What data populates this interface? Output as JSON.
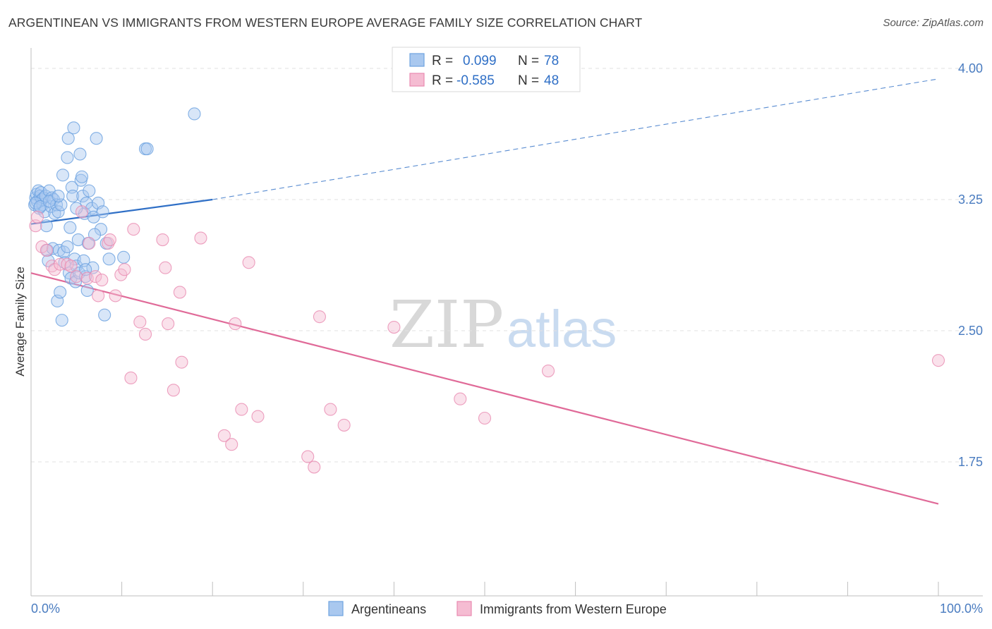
{
  "title": "ARGENTINEAN VS IMMIGRANTS FROM WESTERN EUROPE AVERAGE FAMILY SIZE CORRELATION CHART",
  "source": "Source: ZipAtlas.com",
  "watermark": {
    "zip": "ZIP",
    "atlas": "atlas"
  },
  "colors": {
    "blue": "#6fa3e0",
    "blue_fill": "#a9c8ef",
    "blue_line": "#2f6fc6",
    "pink": "#e88ab0",
    "pink_fill": "#f5bcd2",
    "pink_line": "#e06a98",
    "grid": "#e2e2e2",
    "tick": "#4a7cc0"
  },
  "legend": {
    "r_label": "R =",
    "n_label": "N =",
    "rows": [
      {
        "r": "0.099",
        "n": "78"
      },
      {
        "r": "-0.585",
        "n": "48"
      }
    ]
  },
  "chart_data": {
    "type": "scatter",
    "title": "ARGENTINEAN VS IMMIGRANTS FROM WESTERN EUROPE AVERAGE FAMILY SIZE CORRELATION CHART",
    "xlabel": "",
    "ylabel": "Average Family Size",
    "xlim": [
      0,
      100
    ],
    "ylim": [
      1.0,
      4.1
    ],
    "x_tick_labels": {
      "left": "0.0%",
      "right": "100.0%"
    },
    "y_ticks": [
      1.75,
      2.5,
      3.25,
      4.0
    ],
    "y_tick_labels": [
      "1.75",
      "2.50",
      "3.25",
      "4.00"
    ],
    "grid": true,
    "legend_position": "bottom",
    "series": [
      {
        "name": "Argentineans",
        "r": 0.099,
        "n": 78,
        "trend": {
          "x0": 0,
          "y0": 3.11,
          "x1": 20,
          "y1": 3.25,
          "dashed_to_x": 100,
          "dashed_to_y": 3.94
        },
        "points": [
          [
            0.4,
            3.22
          ],
          [
            0.5,
            3.26
          ],
          [
            0.6,
            3.28
          ],
          [
            0.7,
            3.24
          ],
          [
            0.8,
            3.3
          ],
          [
            0.9,
            3.2
          ],
          [
            1.0,
            3.27
          ],
          [
            1.1,
            3.29
          ],
          [
            1.2,
            3.25
          ],
          [
            1.3,
            3.22
          ],
          [
            1.4,
            3.26
          ],
          [
            1.5,
            3.18
          ],
          [
            1.6,
            3.27
          ],
          [
            1.7,
            3.1
          ],
          [
            1.8,
            2.96
          ],
          [
            1.9,
            2.9
          ],
          [
            2.0,
            3.3
          ],
          [
            2.2,
            3.21
          ],
          [
            2.3,
            3.26
          ],
          [
            2.4,
            2.97
          ],
          [
            2.5,
            3.25
          ],
          [
            2.6,
            3.17
          ],
          [
            2.8,
            3.22
          ],
          [
            2.9,
            2.67
          ],
          [
            3.0,
            3.18
          ],
          [
            3.1,
            2.96
          ],
          [
            3.2,
            2.72
          ],
          [
            3.3,
            3.22
          ],
          [
            3.4,
            2.56
          ],
          [
            3.5,
            3.39
          ],
          [
            3.6,
            2.95
          ],
          [
            3.7,
            2.89
          ],
          [
            4.0,
            3.49
          ],
          [
            4.1,
            3.6
          ],
          [
            4.2,
            2.83
          ],
          [
            4.3,
            3.09
          ],
          [
            4.4,
            2.8
          ],
          [
            4.5,
            3.32
          ],
          [
            4.6,
            3.27
          ],
          [
            4.7,
            3.66
          ],
          [
            4.8,
            2.91
          ],
          [
            4.9,
            2.78
          ],
          [
            5.0,
            2.87
          ],
          [
            5.2,
            3.02
          ],
          [
            5.3,
            2.83
          ],
          [
            5.4,
            3.51
          ],
          [
            5.5,
            3.36
          ],
          [
            5.6,
            3.38
          ],
          [
            5.7,
            3.27
          ],
          [
            5.8,
            2.9
          ],
          [
            5.9,
            3.17
          ],
          [
            6.0,
            2.81
          ],
          [
            6.1,
            3.23
          ],
          [
            6.2,
            2.73
          ],
          [
            6.3,
            3.0
          ],
          [
            6.4,
            3.3
          ],
          [
            6.7,
            3.2
          ],
          [
            6.8,
            2.86
          ],
          [
            6.9,
            3.15
          ],
          [
            7.2,
            3.6
          ],
          [
            7.4,
            3.23
          ],
          [
            7.7,
            3.08
          ],
          [
            7.9,
            3.18
          ],
          [
            8.1,
            2.59
          ],
          [
            8.3,
            3.0
          ],
          [
            8.6,
            2.91
          ],
          [
            10.2,
            2.92
          ],
          [
            12.6,
            3.54
          ],
          [
            12.8,
            3.54
          ],
          [
            18.0,
            3.74
          ],
          [
            0.5,
            3.23
          ],
          [
            1.0,
            3.21
          ],
          [
            2.0,
            3.24
          ],
          [
            3.0,
            3.27
          ],
          [
            4.0,
            2.98
          ],
          [
            5.0,
            3.2
          ],
          [
            6.0,
            2.85
          ],
          [
            7.0,
            3.05
          ]
        ]
      },
      {
        "name": "Immigrants from Western Europe",
        "r": -0.585,
        "n": 48,
        "trend": {
          "x0": 0,
          "y0": 2.83,
          "x1": 100,
          "y1": 1.51
        },
        "points": [
          [
            0.5,
            3.1
          ],
          [
            0.7,
            3.15
          ],
          [
            1.2,
            2.98
          ],
          [
            1.7,
            2.96
          ],
          [
            2.3,
            2.87
          ],
          [
            2.6,
            2.85
          ],
          [
            3.2,
            2.88
          ],
          [
            4.0,
            2.88
          ],
          [
            4.4,
            2.87
          ],
          [
            5.0,
            2.81
          ],
          [
            5.6,
            3.18
          ],
          [
            6.2,
            2.8
          ],
          [
            6.4,
            3.0
          ],
          [
            7.1,
            2.81
          ],
          [
            7.4,
            2.7
          ],
          [
            7.8,
            2.79
          ],
          [
            8.5,
            3.0
          ],
          [
            8.7,
            3.02
          ],
          [
            9.3,
            2.7
          ],
          [
            9.9,
            2.82
          ],
          [
            10.3,
            2.85
          ],
          [
            11.3,
            3.08
          ],
          [
            12.0,
            2.55
          ],
          [
            12.6,
            2.48
          ],
          [
            11.0,
            2.23
          ],
          [
            14.5,
            3.02
          ],
          [
            14.8,
            2.86
          ],
          [
            15.1,
            2.54
          ],
          [
            15.7,
            2.16
          ],
          [
            16.4,
            2.72
          ],
          [
            16.6,
            2.32
          ],
          [
            18.7,
            3.03
          ],
          [
            21.3,
            1.9
          ],
          [
            22.1,
            1.85
          ],
          [
            22.5,
            2.54
          ],
          [
            23.2,
            2.05
          ],
          [
            24.0,
            2.89
          ],
          [
            25.0,
            2.01
          ],
          [
            30.5,
            1.78
          ],
          [
            31.2,
            1.72
          ],
          [
            31.8,
            2.58
          ],
          [
            33.0,
            2.05
          ],
          [
            34.5,
            1.96
          ],
          [
            40.0,
            2.52
          ],
          [
            47.3,
            2.11
          ],
          [
            50.0,
            2.0
          ],
          [
            57.0,
            2.27
          ],
          [
            100.0,
            2.33
          ]
        ]
      }
    ]
  }
}
